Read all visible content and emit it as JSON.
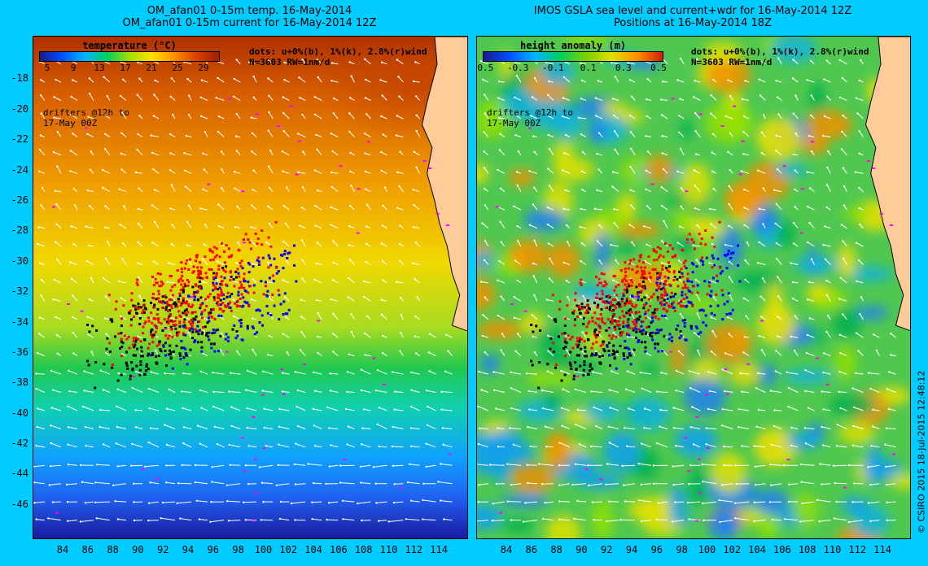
{
  "left_panel": {
    "title_line1": "OM_afan01 0-15m temp. 16-May-2014",
    "title_line2": "OM_afan01 0-15m current for 16-May-2014 12Z",
    "colorbar_title": "temperature (°C)",
    "colorbar_ticks": [
      "5",
      "9",
      "13",
      "17",
      "21",
      "25",
      "29"
    ],
    "colorbar_colors": [
      "#1a1a8c",
      "#0050ff",
      "#00b4ff",
      "#00d060",
      "#a0e000",
      "#ffe000",
      "#ff9000",
      "#d84000",
      "#a02000"
    ],
    "dots_note_line1": "dots: u+0%(b), 1%(k), 2.8%(r)wind",
    "dots_note_line2": "N=3603 RW=1nm/d",
    "drifters_line1": "drifters @12h to",
    "drifters_line2": "17-May 00Z"
  },
  "right_panel": {
    "title_line1": "IMOS GSLA sea level and current+wdr for 16-May-2014 12Z",
    "title_line2": "Positions at 16-May-2014 18Z",
    "colorbar_title": "height anomaly (m)",
    "colorbar_ticks": [
      "-0.5",
      "-0.3",
      "-0.1",
      "0.1",
      "0.3",
      "0.5"
    ],
    "colorbar_colors": [
      "#1a1a8c",
      "#0050ff",
      "#00b4ff",
      "#00d060",
      "#7ad000",
      "#e0e000",
      "#ff9000",
      "#d02000"
    ],
    "dots_note_line1": "dots: u+0%(b), 1%(k), 2.8%(r)wind",
    "dots_note_line2": "N=3603 RW=1nm/d",
    "drifters_line1": "drifters @12h to",
    "drifters_line2": "17-May 00Z"
  },
  "axes": {
    "lat_ticks": [
      "-18",
      "-20",
      "-22",
      "-24",
      "-26",
      "-28",
      "-30",
      "-32",
      "-34",
      "-36",
      "-38",
      "-40",
      "-42",
      "-44",
      "-46"
    ],
    "lon_ticks": [
      "84",
      "86",
      "88",
      "90",
      "92",
      "94",
      "96",
      "98",
      "100",
      "102",
      "104",
      "106",
      "108",
      "110",
      "112",
      "114"
    ],
    "lat_range": [
      -48.2,
      -15.2
    ],
    "lon_range": [
      81.6,
      116.2
    ]
  },
  "map_data": {
    "drifter_colors": {
      "surface_current": "#0000ff",
      "current_1pct_wind": "#000000",
      "current_2_8pct_wind": "#ff0000",
      "drifter_obs": "#ff00ff"
    },
    "land_color": "#ffcc99",
    "drifter_cloud_extent": {
      "lon": [
        85.6,
        102.8
      ],
      "lat": [
        -38.5,
        -26.8
      ]
    }
  },
  "copyright": "© CSIRO 2015   18-Jul-2015 12:48:12"
}
